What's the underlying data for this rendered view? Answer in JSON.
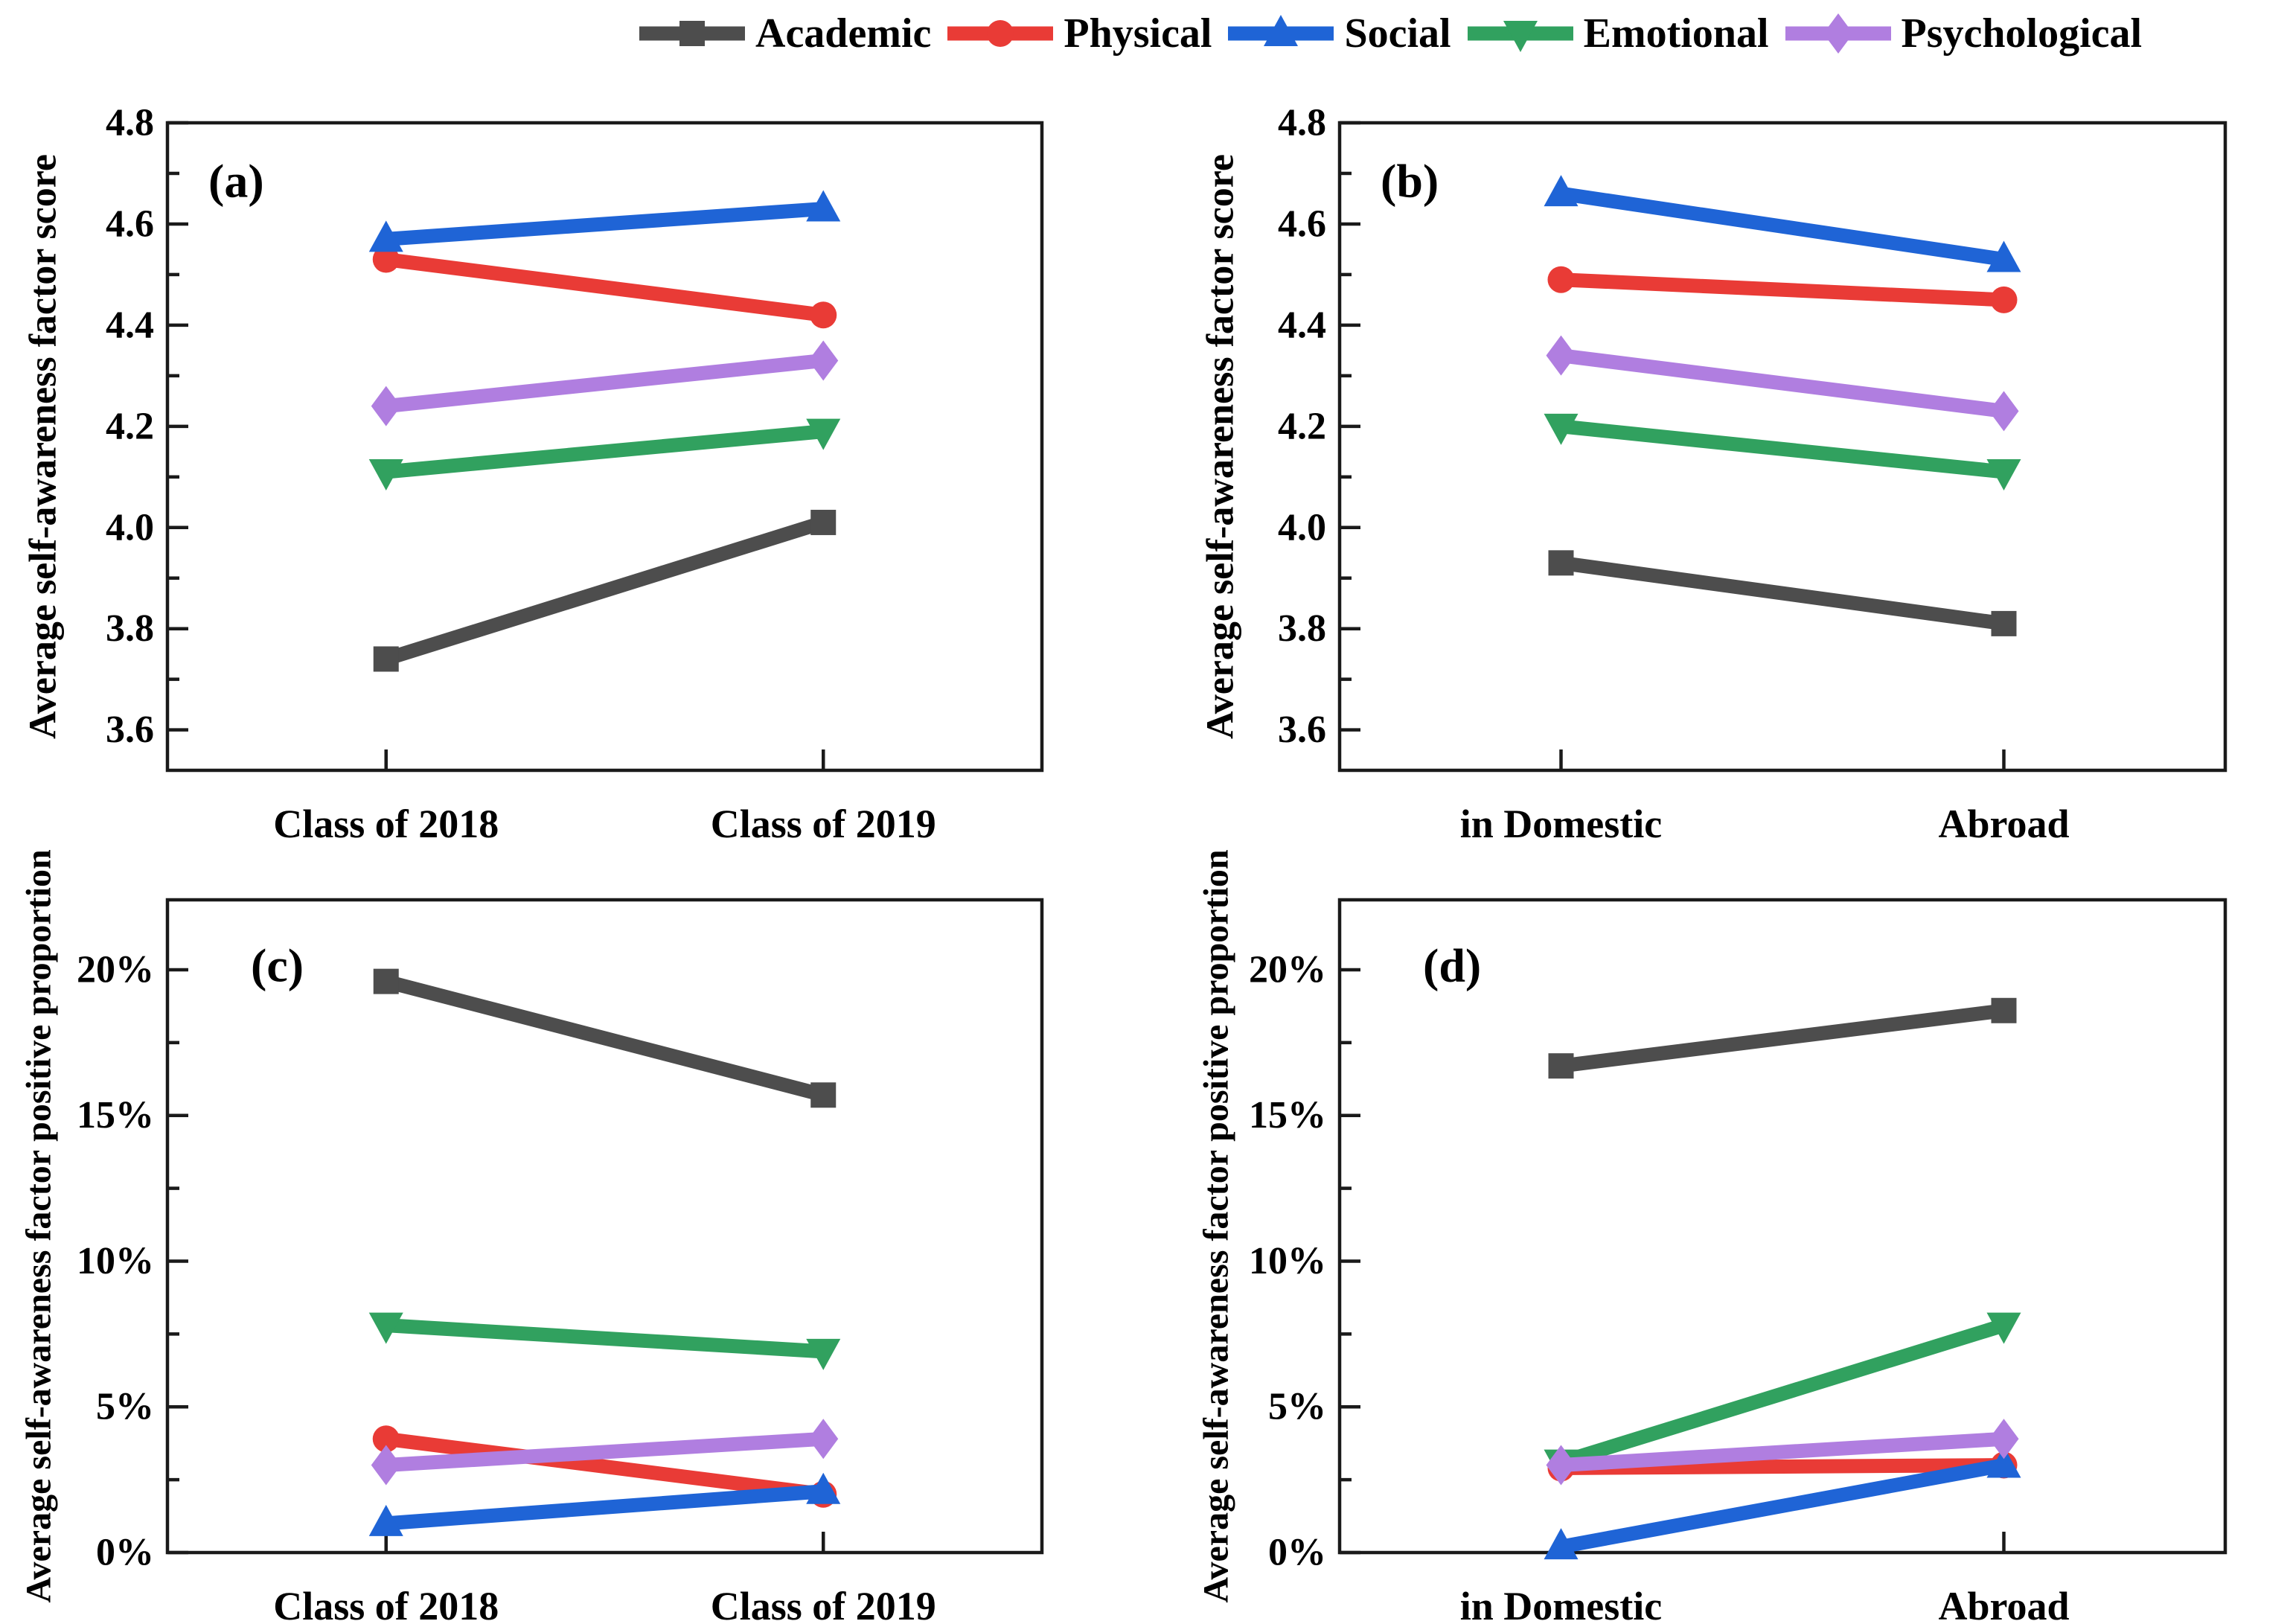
{
  "figure": {
    "background": "#ffffff",
    "frame_color": "#1a1a1a",
    "text_color": "#000000"
  },
  "legend": {
    "items": [
      {
        "label": "Academic",
        "marker": "square",
        "color": "#4d4d4d"
      },
      {
        "label": "Physical",
        "marker": "circle",
        "color": "#e93b36"
      },
      {
        "label": "Social",
        "marker": "triangle-up",
        "color": "#1f64d6"
      },
      {
        "label": "Emotional",
        "marker": "triangle-down",
        "color": "#31a15f"
      },
      {
        "label": "Psychological",
        "marker": "diamond",
        "color": "#b07ee0"
      }
    ]
  },
  "chart_data": [
    {
      "id": "a",
      "letter": "(a)",
      "type": "line",
      "ylabel": "Average self-awareness factor score",
      "categories": [
        "Class of 2018",
        "Class of 2019"
      ],
      "ylim": [
        3.52,
        4.8
      ],
      "grid": false,
      "yticks": [
        {
          "value": 3.6,
          "label": "3.6"
        },
        {
          "value": 3.8,
          "label": "3.8"
        },
        {
          "value": 4.0,
          "label": "4.0"
        },
        {
          "value": 4.2,
          "label": "4.2"
        },
        {
          "value": 4.4,
          "label": "4.4"
        },
        {
          "value": 4.6,
          "label": "4.6"
        },
        {
          "value": 4.8,
          "label": "4.8"
        }
      ],
      "minor_tick_step": 0.1,
      "series": [
        {
          "name": "Academic",
          "values": [
            3.74,
            4.01
          ]
        },
        {
          "name": "Physical",
          "values": [
            4.53,
            4.42
          ]
        },
        {
          "name": "Social",
          "values": [
            4.57,
            4.63
          ]
        },
        {
          "name": "Emotional",
          "values": [
            4.11,
            4.19
          ]
        },
        {
          "name": "Psychological",
          "values": [
            4.24,
            4.33
          ]
        }
      ]
    },
    {
      "id": "b",
      "letter": "(b)",
      "type": "line",
      "ylabel": "Average self-awareness factor score",
      "categories": [
        "in Domestic",
        "Abroad"
      ],
      "ylim": [
        3.52,
        4.8
      ],
      "grid": false,
      "yticks": [
        {
          "value": 3.6,
          "label": "3.6"
        },
        {
          "value": 3.8,
          "label": "3.8"
        },
        {
          "value": 4.0,
          "label": "4.0"
        },
        {
          "value": 4.2,
          "label": "4.2"
        },
        {
          "value": 4.4,
          "label": "4.4"
        },
        {
          "value": 4.6,
          "label": "4.6"
        },
        {
          "value": 4.8,
          "label": "4.8"
        }
      ],
      "minor_tick_step": 0.1,
      "series": [
        {
          "name": "Academic",
          "values": [
            3.93,
            3.81
          ]
        },
        {
          "name": "Physical",
          "values": [
            4.49,
            4.45
          ]
        },
        {
          "name": "Social",
          "values": [
            4.66,
            4.53
          ]
        },
        {
          "name": "Emotional",
          "values": [
            4.2,
            4.11
          ]
        },
        {
          "name": "Psychological",
          "values": [
            4.34,
            4.23
          ]
        }
      ]
    },
    {
      "id": "c",
      "letter": "(c)",
      "type": "line",
      "ylabel": "Average self-awareness factor positive proportion",
      "categories": [
        "Class of 2018",
        "Class of 2019"
      ],
      "ylim": [
        0,
        22.4
      ],
      "grid": false,
      "yticks": [
        {
          "value": 0,
          "label": "0%"
        },
        {
          "value": 5,
          "label": "5%"
        },
        {
          "value": 10,
          "label": "10%"
        },
        {
          "value": 15,
          "label": "15%"
        },
        {
          "value": 20,
          "label": "20%"
        }
      ],
      "minor_tick_step": 2.5,
      "series": [
        {
          "name": "Academic",
          "values": [
            19.6,
            15.7
          ]
        },
        {
          "name": "Physical",
          "values": [
            3.9,
            2.0
          ]
        },
        {
          "name": "Social",
          "values": [
            1.0,
            2.1
          ]
        },
        {
          "name": "Emotional",
          "values": [
            7.8,
            6.9
          ]
        },
        {
          "name": "Psychological",
          "values": [
            3.0,
            3.9
          ]
        }
      ]
    },
    {
      "id": "d",
      "letter": "(d)",
      "type": "line",
      "ylabel": "Average self-awareness factor positive proportion",
      "categories": [
        "in Domestic",
        "Abroad"
      ],
      "ylim": [
        0,
        22.4
      ],
      "grid": false,
      "yticks": [
        {
          "value": 0,
          "label": "0%"
        },
        {
          "value": 5,
          "label": "5%"
        },
        {
          "value": 10,
          "label": "10%"
        },
        {
          "value": 15,
          "label": "15%"
        },
        {
          "value": 20,
          "label": "20%"
        }
      ],
      "minor_tick_step": 2.5,
      "series": [
        {
          "name": "Academic",
          "values": [
            16.7,
            18.6
          ]
        },
        {
          "name": "Physical",
          "values": [
            2.9,
            3.0
          ]
        },
        {
          "name": "Social",
          "values": [
            0.2,
            3.0
          ]
        },
        {
          "name": "Emotional",
          "values": [
            3.1,
            7.8
          ]
        },
        {
          "name": "Psychological",
          "values": [
            3.0,
            3.9
          ]
        }
      ]
    }
  ]
}
